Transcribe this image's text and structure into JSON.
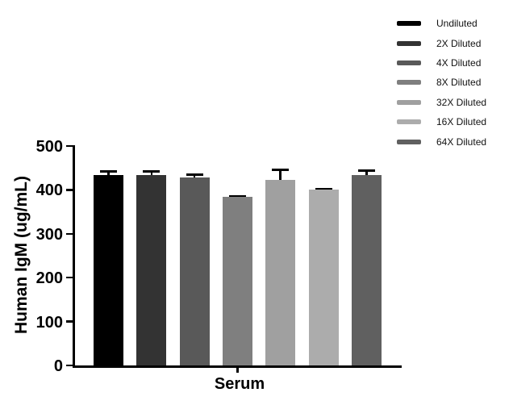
{
  "chart_data": {
    "type": "bar",
    "title": "",
    "xlabel": "Serum",
    "ylabel": "Human IgM (ug/mL)",
    "categories": [
      "Serum"
    ],
    "series": [
      {
        "name": "Undiluted",
        "values": [
          433
        ],
        "error_upper": [
          11
        ],
        "color": "#000000"
      },
      {
        "name": "2X Diluted",
        "values": [
          434
        ],
        "error_upper": [
          11
        ],
        "color": "#333333"
      },
      {
        "name": "4X Diluted",
        "values": [
          429
        ],
        "error_upper": [
          9
        ],
        "color": "#595959"
      },
      {
        "name": "8X Diluted",
        "values": [
          384
        ],
        "error_upper": [
          4
        ],
        "color": "#7f7f7f"
      },
      {
        "name": "32X Diluted",
        "values": [
          423
        ],
        "error_upper": [
          26
        ],
        "color": "#a0a0a0"
      },
      {
        "name": "16X Diluted",
        "values": [
          400
        ],
        "error_upper": [
          5
        ],
        "color": "#acacac"
      },
      {
        "name": "64X Diluted",
        "values": [
          433
        ],
        "error_upper": [
          14
        ],
        "color": "#606060"
      }
    ],
    "ylim": [
      0,
      500
    ],
    "yticks": [
      0,
      100,
      200,
      300,
      400,
      500
    ],
    "grid": false,
    "legend_position": "top-right",
    "error_bars": "upper error caps only",
    "axis_color": "#000000",
    "background_color": "#ffffff"
  }
}
